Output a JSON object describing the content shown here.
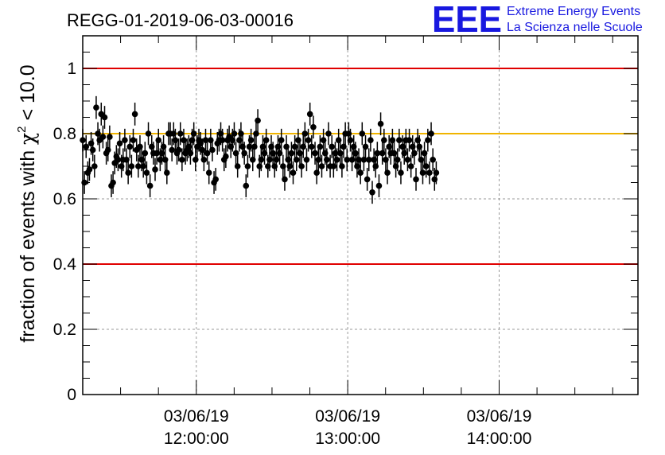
{
  "logo": {
    "letters": "EEE",
    "line1": "Extreme Energy Events",
    "line2": "La Scienza nelle Scuole",
    "color": "#1818e0"
  },
  "chart_data": {
    "type": "scatter",
    "title": "REGG-01-2019-06-03-00016",
    "ylabel": "fraction of events with χ² < 10.0",
    "ylabel_parts": {
      "prefix": "fraction of events with ",
      "symbol": "χ",
      "superscript": "2",
      "suffix": " < 10.0"
    },
    "ylim": [
      0,
      1.1
    ],
    "xlim": [
      "11:15:00",
      "14:55:00"
    ],
    "grid": true,
    "y_ticks": [
      "0",
      "0.2",
      "0.4",
      "0.6",
      "0.8",
      "1"
    ],
    "x_ticks": [
      {
        "date": "03/06/19",
        "time": "12:00:00"
      },
      {
        "date": "03/06/19",
        "time": "13:00:00"
      },
      {
        "date": "03/06/19",
        "time": "14:00:00"
      }
    ],
    "reference_lines": [
      {
        "y": 1.0,
        "color": "#e00000"
      },
      {
        "y": 0.8,
        "color": "#f0b400"
      },
      {
        "y": 0.4,
        "color": "#e00000"
      }
    ],
    "series": [
      {
        "color": "#000000",
        "x_start": "11:15:00",
        "x_step_minutes": 0.667,
        "error": 0.035,
        "y": [
          0.78,
          0.65,
          0.76,
          0.68,
          0.69,
          0.77,
          0.75,
          0.7,
          0.88,
          0.8,
          0.78,
          0.86,
          0.79,
          0.85,
          0.74,
          0.75,
          0.79,
          0.64,
          0.65,
          0.71,
          0.73,
          0.72,
          0.77,
          0.7,
          0.72,
          0.78,
          0.72,
          0.68,
          0.76,
          0.7,
          0.78,
          0.86,
          0.75,
          0.7,
          0.76,
          0.72,
          0.7,
          0.74,
          0.68,
          0.8,
          0.64,
          0.76,
          0.74,
          0.69,
          0.74,
          0.78,
          0.72,
          0.74,
          0.76,
          0.72,
          0.68,
          0.8,
          0.8,
          0.75,
          0.8,
          0.78,
          0.74,
          0.75,
          0.8,
          0.72,
          0.78,
          0.74,
          0.75,
          0.76,
          0.74,
          0.78,
          0.8,
          0.72,
          0.76,
          0.78,
          0.77,
          0.75,
          0.72,
          0.78,
          0.74,
          0.68,
          0.78,
          0.75,
          0.65,
          0.66,
          0.77,
          0.78,
          0.8,
          0.78,
          0.72,
          0.73,
          0.78,
          0.79,
          0.76,
          0.78,
          0.8,
          0.74,
          0.7,
          0.78,
          0.8,
          0.76,
          0.74,
          0.64,
          0.7,
          0.76,
          0.78,
          0.72,
          0.76,
          0.8,
          0.84,
          0.7,
          0.72,
          0.76,
          0.74,
          0.78,
          0.7,
          0.72,
          0.76,
          0.74,
          0.7,
          0.72,
          0.76,
          0.74,
          0.78,
          0.7,
          0.66,
          0.76,
          0.72,
          0.7,
          0.74,
          0.68,
          0.76,
          0.72,
          0.78,
          0.74,
          0.7,
          0.76,
          0.8,
          0.72,
          0.78,
          0.86,
          0.76,
          0.82,
          0.74,
          0.68,
          0.72,
          0.76,
          0.7,
          0.78,
          0.74,
          0.72,
          0.8,
          0.7,
          0.76,
          0.7,
          0.74,
          0.72,
          0.78,
          0.74,
          0.7,
          0.76,
          0.8,
          0.72,
          0.8,
          0.78,
          0.72,
          0.76,
          0.74,
          0.7,
          0.72,
          0.68,
          0.8,
          0.72,
          0.76,
          0.66,
          0.72,
          0.78,
          0.62,
          0.72,
          0.7,
          0.74,
          0.64,
          0.83,
          0.74,
          0.78,
          0.72,
          0.68,
          0.76,
          0.74,
          0.78,
          0.74,
          0.7,
          0.72,
          0.78,
          0.68,
          0.76,
          0.74,
          0.78,
          0.72,
          0.78,
          0.7,
          0.76,
          0.74,
          0.66,
          0.78,
          0.76,
          0.72,
          0.68,
          0.74,
          0.7,
          0.78,
          0.68,
          0.8,
          0.72,
          0.66,
          0.68
        ]
      }
    ]
  }
}
